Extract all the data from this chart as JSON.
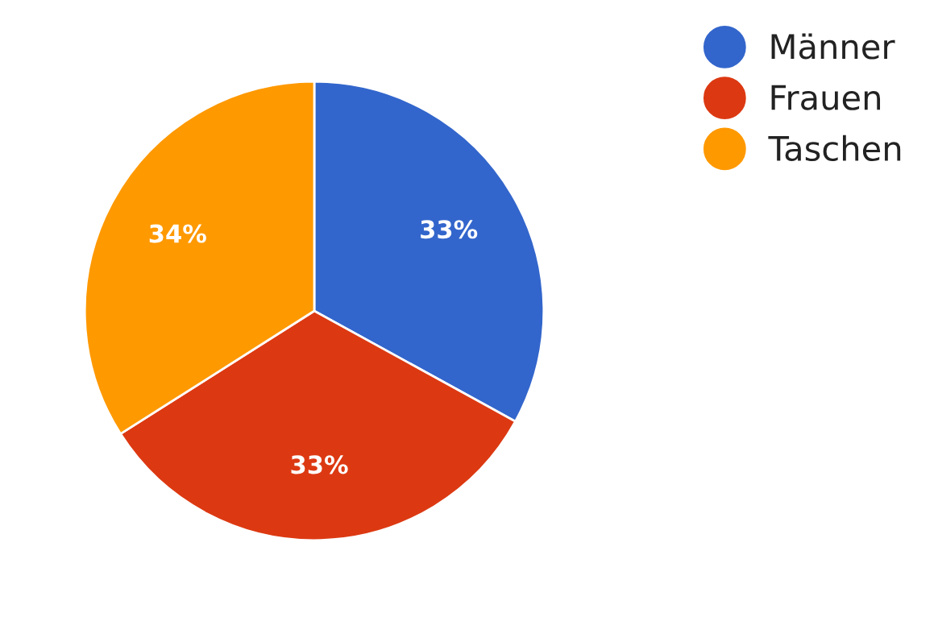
{
  "chart_data": {
    "type": "pie",
    "categories": [
      "Männer",
      "Frauen",
      "Taschen"
    ],
    "values": [
      33,
      33,
      34
    ],
    "colors": [
      "#3366cc",
      "#dc3912",
      "#ff9900"
    ],
    "value_labels": [
      "33%",
      "33%",
      "34%"
    ],
    "legend": "top right"
  }
}
